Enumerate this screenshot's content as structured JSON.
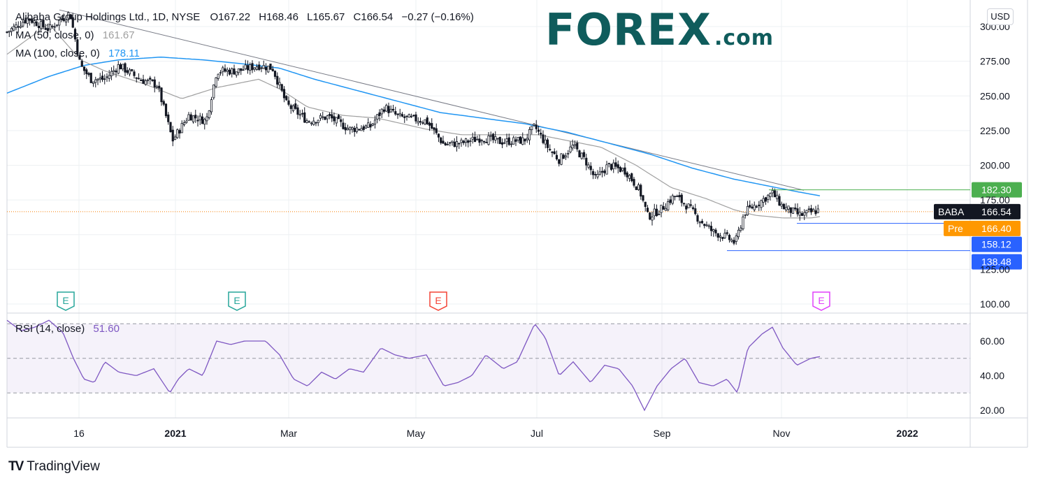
{
  "symbol": {
    "title": "Alibaba Group Holdings Ltd., 1D, NYSE",
    "open_label": "O",
    "open": "167.22",
    "high_label": "H",
    "high": "168.46",
    "low_label": "L",
    "low": "165.67",
    "close_label": "C",
    "close": "166.54",
    "change": "−0.27 (−0.16%)"
  },
  "indicators": {
    "ma50": {
      "label": "MA (50, close, 0)",
      "value": "161.67",
      "color": "#a0a0a0"
    },
    "ma100": {
      "label": "MA (100, close, 0)",
      "value": "178.11",
      "color": "#2196f3"
    },
    "rsi": {
      "label": "RSI (14, close)",
      "value": "51.60",
      "color": "#7e57c2"
    }
  },
  "brand": {
    "logo_main": "FOREX",
    "logo_suffix": ".com",
    "platform": "TradingView",
    "brand_color": "#0f5c5c"
  },
  "currency": "USD",
  "chart_data": {
    "type": "candlestick",
    "price_axis": {
      "ticks": [
        "300.00",
        "275.00",
        "250.00",
        "225.00",
        "200.00",
        "175.00",
        "125.00",
        "100.00"
      ],
      "range": [
        100,
        305
      ]
    },
    "rsi_axis": {
      "ticks": [
        "60.00",
        "40.00",
        "20.00"
      ],
      "range": [
        17,
        76
      ],
      "bands": [
        30,
        50,
        70
      ]
    },
    "time_axis": [
      "16",
      "2021",
      "Mar",
      "May",
      "Jul",
      "Sep",
      "Nov",
      "2022"
    ],
    "last_price": {
      "label": "BABA",
      "value": "166.54",
      "color": "#131722"
    },
    "premarket": {
      "label": "Pre",
      "value": "166.40",
      "color": "#ff9800"
    },
    "levels": [
      {
        "value": 182.3,
        "label": "182.30",
        "color": "#4caf50"
      },
      {
        "value": 158.12,
        "label": "158.12",
        "color": "#2962ff"
      },
      {
        "value": 138.48,
        "label": "138.48",
        "color": "#2962ff"
      }
    ],
    "earnings_markers": [
      {
        "label": "E",
        "color": "#26a69a",
        "date": "2020-11"
      },
      {
        "label": "E",
        "color": "#26a69a",
        "date": "2021-02"
      },
      {
        "label": "E",
        "color": "#f44336",
        "date": "2021-05"
      },
      {
        "label": "E",
        "color": "#e040fb",
        "date": "2021-11"
      }
    ],
    "price_path": [
      [
        0,
        296
      ],
      [
        30,
        306
      ],
      [
        60,
        298
      ],
      [
        90,
        310
      ],
      [
        105,
        272
      ],
      [
        120,
        262
      ],
      [
        140,
        262
      ],
      [
        160,
        272
      ],
      [
        190,
        262
      ],
      [
        215,
        258
      ],
      [
        237,
        218
      ],
      [
        260,
        236
      ],
      [
        285,
        232
      ],
      [
        300,
        268
      ],
      [
        330,
        268
      ],
      [
        360,
        272
      ],
      [
        380,
        270
      ],
      [
        400,
        244
      ],
      [
        430,
        232
      ],
      [
        460,
        235
      ],
      [
        490,
        226
      ],
      [
        520,
        228
      ],
      [
        540,
        242
      ],
      [
        560,
        235
      ],
      [
        600,
        232
      ],
      [
        625,
        215
      ],
      [
        650,
        216
      ],
      [
        680,
        220
      ],
      [
        705,
        217
      ],
      [
        740,
        218
      ],
      [
        755,
        228
      ],
      [
        775,
        212
      ],
      [
        790,
        204
      ],
      [
        810,
        214
      ],
      [
        828,
        203
      ],
      [
        842,
        190
      ],
      [
        860,
        200
      ],
      [
        885,
        196
      ],
      [
        905,
        182
      ],
      [
        917,
        163
      ],
      [
        935,
        168
      ],
      [
        955,
        178
      ],
      [
        975,
        170
      ],
      [
        990,
        161
      ],
      [
        1010,
        152
      ],
      [
        1030,
        148
      ],
      [
        1042,
        144
      ],
      [
        1055,
        166
      ],
      [
        1075,
        173
      ],
      [
        1095,
        180
      ],
      [
        1110,
        170
      ],
      [
        1135,
        164
      ],
      [
        1150,
        166
      ],
      [
        1163,
        168
      ]
    ],
    "ma50_path": [
      [
        0,
        280
      ],
      [
        60,
        302
      ],
      [
        105,
        276
      ],
      [
        140,
        268
      ],
      [
        200,
        258
      ],
      [
        250,
        248
      ],
      [
        300,
        256
      ],
      [
        360,
        262
      ],
      [
        390,
        255
      ],
      [
        430,
        242
      ],
      [
        480,
        236
      ],
      [
        530,
        234
      ],
      [
        600,
        226
      ],
      [
        650,
        222
      ],
      [
        700,
        222
      ],
      [
        760,
        222
      ],
      [
        800,
        218
      ],
      [
        850,
        213
      ],
      [
        900,
        200
      ],
      [
        950,
        184
      ],
      [
        1000,
        176
      ],
      [
        1040,
        168
      ],
      [
        1070,
        164
      ],
      [
        1110,
        162
      ],
      [
        1150,
        162
      ],
      [
        1163,
        163
      ]
    ],
    "ma100_path": [
      [
        0,
        252
      ],
      [
        60,
        264
      ],
      [
        110,
        272
      ],
      [
        160,
        276
      ],
      [
        220,
        278
      ],
      [
        280,
        276
      ],
      [
        340,
        273
      ],
      [
        390,
        270
      ],
      [
        440,
        262
      ],
      [
        500,
        254
      ],
      [
        560,
        246
      ],
      [
        620,
        238
      ],
      [
        680,
        234
      ],
      [
        740,
        230
      ],
      [
        800,
        224
      ],
      [
        860,
        216
      ],
      [
        920,
        208
      ],
      [
        980,
        198
      ],
      [
        1040,
        190
      ],
      [
        1090,
        185
      ],
      [
        1130,
        181
      ],
      [
        1163,
        178
      ]
    ],
    "trendline_path": [
      [
        75,
        312
      ],
      [
        1140,
        182
      ]
    ],
    "rsi_path": [
      [
        0,
        72
      ],
      [
        20,
        66
      ],
      [
        40,
        68
      ],
      [
        60,
        72
      ],
      [
        80,
        65
      ],
      [
        95,
        50
      ],
      [
        110,
        38
      ],
      [
        125,
        36
      ],
      [
        140,
        48
      ],
      [
        160,
        42
      ],
      [
        185,
        40
      ],
      [
        210,
        44
      ],
      [
        233,
        30
      ],
      [
        245,
        38
      ],
      [
        260,
        44
      ],
      [
        280,
        40
      ],
      [
        300,
        60
      ],
      [
        320,
        58
      ],
      [
        340,
        60
      ],
      [
        370,
        60
      ],
      [
        390,
        52
      ],
      [
        410,
        38
      ],
      [
        430,
        34
      ],
      [
        450,
        42
      ],
      [
        470,
        38
      ],
      [
        490,
        44
      ],
      [
        510,
        42
      ],
      [
        535,
        56
      ],
      [
        555,
        52
      ],
      [
        575,
        50
      ],
      [
        600,
        52
      ],
      [
        625,
        34
      ],
      [
        645,
        36
      ],
      [
        665,
        40
      ],
      [
        685,
        52
      ],
      [
        710,
        44
      ],
      [
        730,
        48
      ],
      [
        755,
        70
      ],
      [
        770,
        62
      ],
      [
        790,
        40
      ],
      [
        810,
        48
      ],
      [
        835,
        36
      ],
      [
        855,
        46
      ],
      [
        875,
        44
      ],
      [
        895,
        34
      ],
      [
        912,
        20
      ],
      [
        930,
        34
      ],
      [
        950,
        44
      ],
      [
        970,
        50
      ],
      [
        990,
        36
      ],
      [
        1010,
        34
      ],
      [
        1030,
        38
      ],
      [
        1045,
        30
      ],
      [
        1060,
        56
      ],
      [
        1080,
        64
      ],
      [
        1095,
        68
      ],
      [
        1110,
        56
      ],
      [
        1130,
        46
      ],
      [
        1150,
        50
      ],
      [
        1163,
        51
      ]
    ]
  }
}
